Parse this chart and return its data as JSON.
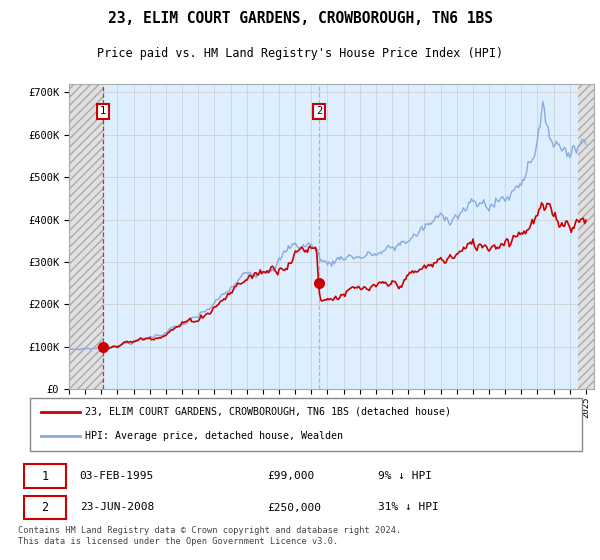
{
  "title": "23, ELIM COURT GARDENS, CROWBOROUGH, TN6 1BS",
  "subtitle": "Price paid vs. HM Land Registry's House Price Index (HPI)",
  "legend_line1": "23, ELIM COURT GARDENS, CROWBOROUGH, TN6 1BS (detached house)",
  "legend_line2": "HPI: Average price, detached house, Wealden",
  "annotation1_date": "03-FEB-1995",
  "annotation1_price": "£99,000",
  "annotation1_hpi": "9% ↓ HPI",
  "annotation2_date": "23-JUN-2008",
  "annotation2_price": "£250,000",
  "annotation2_hpi": "31% ↓ HPI",
  "footer": "Contains HM Land Registry data © Crown copyright and database right 2024.\nThis data is licensed under the Open Government Licence v3.0.",
  "price_color": "#cc0000",
  "hpi_color": "#88aadd",
  "grid_color": "#cccccc",
  "background_plot": "#ddeeff",
  "background_hatch": "#e0e0e0",
  "ylim": [
    0,
    720000
  ],
  "yticks": [
    0,
    100000,
    200000,
    300000,
    400000,
    500000,
    600000,
    700000
  ],
  "ytick_labels": [
    "£0",
    "£100K",
    "£200K",
    "£300K",
    "£400K",
    "£500K",
    "£600K",
    "£700K"
  ],
  "sale1_x": 1995.09,
  "sale1_y": 99000,
  "sale2_x": 2008.47,
  "sale2_y": 250000,
  "xmin": 1993.0,
  "xmax": 2025.5,
  "hatch_left_end": 1995.09,
  "hatch_right_start": 2024.5
}
